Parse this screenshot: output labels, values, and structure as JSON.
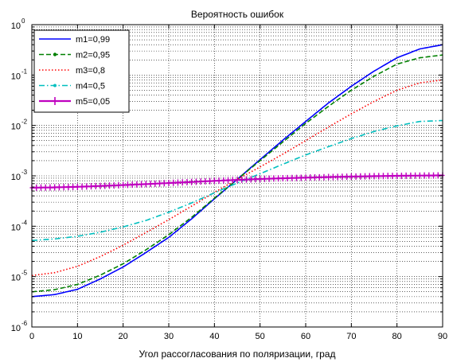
{
  "chart_data": {
    "type": "line",
    "title": "Вероятность ошибок",
    "xlabel": "Угол рассогласования по поляризации, град",
    "ylabel": "",
    "xlim": [
      0,
      90
    ],
    "ylim": [
      1e-06,
      1
    ],
    "yscale": "log",
    "grid": true,
    "legend_position": "top-left",
    "x_ticks": [
      "0",
      "10",
      "20",
      "30",
      "40",
      "50",
      "60",
      "70",
      "80",
      "90"
    ],
    "y_ticks": [
      {
        "base": "10",
        "exp": "0"
      },
      {
        "base": "10",
        "exp": "-1"
      },
      {
        "base": "10",
        "exp": "-2"
      },
      {
        "base": "10",
        "exp": "-3"
      },
      {
        "base": "10",
        "exp": "-4"
      },
      {
        "base": "10",
        "exp": "-5"
      },
      {
        "base": "10",
        "exp": "-6"
      }
    ],
    "x": [
      0,
      5,
      10,
      15,
      20,
      25,
      30,
      35,
      40,
      45,
      50,
      55,
      60,
      65,
      70,
      75,
      80,
      85,
      90
    ],
    "series": [
      {
        "name": "m1=0,99",
        "color": "#0000ff",
        "style": "solid",
        "marker": "",
        "values": [
          4e-06,
          4.4e-06,
          5.6e-06,
          9e-06,
          1.55e-05,
          3e-05,
          6e-05,
          0.00014,
          0.00035,
          0.00085,
          0.0021,
          0.0051,
          0.012,
          0.028,
          0.06,
          0.12,
          0.22,
          0.33,
          0.4
        ]
      },
      {
        "name": "m2=0,95",
        "color": "#008000",
        "style": "dashed",
        "marker": "dot",
        "values": [
          5e-06,
          5.5e-06,
          7e-06,
          1.07e-05,
          1.8e-05,
          3.4e-05,
          6.8e-05,
          0.00015,
          0.00036,
          0.00085,
          0.002,
          0.0047,
          0.011,
          0.024,
          0.05,
          0.095,
          0.165,
          0.22,
          0.25
        ]
      },
      {
        "name": "m3=0,8",
        "color": "#ff0000",
        "style": "dotted",
        "marker": "",
        "values": [
          1.05e-05,
          1.2e-05,
          1.6e-05,
          2.5e-05,
          4.2e-05,
          7.5e-05,
          0.000135,
          0.00025,
          0.00047,
          0.00085,
          0.0015,
          0.0027,
          0.005,
          0.0093,
          0.017,
          0.03,
          0.05,
          0.07,
          0.08
        ]
      },
      {
        "name": "m4=0,5",
        "color": "#00bfbf",
        "style": "dashdot",
        "marker": "",
        "values": [
          5.2e-05,
          5.6e-05,
          6.3e-05,
          7.6e-05,
          9.7e-05,
          0.00013,
          0.00019,
          0.00029,
          0.00046,
          0.00072,
          0.0011,
          0.0017,
          0.0026,
          0.0038,
          0.0055,
          0.0076,
          0.0098,
          0.012,
          0.0125
        ]
      },
      {
        "name": "m5=0,05",
        "color": "#bf00bf",
        "style": "solid",
        "marker": "plus",
        "values": [
          0.00058,
          0.00059,
          0.000605,
          0.00063,
          0.000655,
          0.000685,
          0.00072,
          0.000755,
          0.000795,
          0.00083,
          0.000865,
          0.000895,
          0.00092,
          0.000945,
          0.000965,
          0.000985,
          0.001,
          0.00101,
          0.00102
        ]
      }
    ]
  }
}
